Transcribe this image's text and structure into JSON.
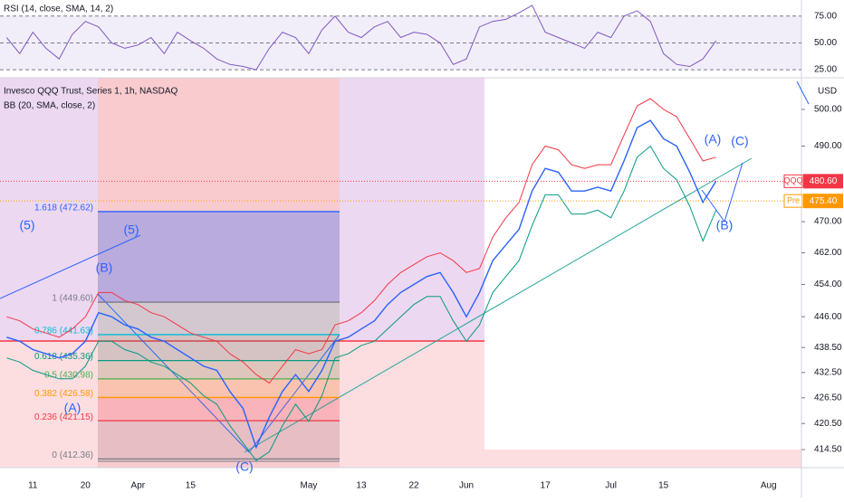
{
  "chart_data": {
    "type": "line",
    "title": "Invesco QQQ Trust, Series 1, 1h, NASDAQ",
    "subtitle": "BB (20, SMA, close, 2)",
    "currency": "USD",
    "log": true,
    "ylim": [
      410.4,
      508.8
    ],
    "yticks": [
      {
        "value": 500,
        "label": "500.00"
      },
      {
        "value": 490,
        "label": "490.00"
      },
      {
        "value": 470,
        "label": "470.00"
      },
      {
        "value": 462,
        "label": "462.00"
      },
      {
        "value": 454,
        "label": "454.00"
      },
      {
        "value": 446,
        "label": "446.00"
      },
      {
        "value": 438.5,
        "label": "438.50"
      },
      {
        "value": 432.5,
        "label": "432.50"
      },
      {
        "value": 426.5,
        "label": "426.50"
      },
      {
        "value": 420.5,
        "label": "420.50"
      },
      {
        "value": 414.5,
        "label": "414.50"
      }
    ],
    "categories": [
      null,
      null,
      "11",
      null,
      null,
      null,
      "20",
      null,
      null,
      null,
      "Apr",
      null,
      null,
      null,
      "15",
      null,
      null,
      null,
      null,
      null,
      null,
      null,
      null,
      "May",
      null,
      null,
      null,
      "13",
      null,
      null,
      null,
      "22",
      null,
      null,
      null,
      "Jun",
      null,
      null,
      null,
      null,
      null,
      "17",
      null,
      null,
      null,
      null,
      "Jul",
      null,
      null,
      null,
      "15",
      null,
      null,
      null,
      null,
      null,
      null,
      null,
      "Aug",
      null,
      null
    ],
    "series": [
      {
        "color": "#2962ff",
        "values": [
          441,
          440,
          438,
          437,
          436,
          437,
          440,
          447,
          446,
          444,
          443,
          441,
          440,
          438,
          436,
          434,
          433,
          428,
          424,
          415,
          422,
          428,
          432,
          428,
          433,
          440,
          441,
          443,
          445,
          449,
          452,
          454,
          456,
          457,
          452,
          446,
          452,
          460,
          464,
          468,
          478,
          484,
          483,
          478,
          478,
          479,
          478,
          486,
          495,
          497,
          492,
          490,
          483,
          475,
          480.6,
          null,
          null,
          null,
          null,
          null,
          null
        ]
      },
      {
        "color": "#f23645",
        "values": [
          446,
          445,
          443,
          442,
          441,
          443,
          446,
          452,
          452,
          450,
          449,
          447,
          446,
          444,
          442,
          441,
          440,
          437,
          435,
          432,
          430,
          434,
          438,
          437,
          438,
          444,
          445,
          447,
          450,
          454,
          457,
          459,
          461,
          462,
          460,
          457,
          458,
          466,
          471,
          475,
          485,
          490,
          489,
          485,
          484,
          485,
          485,
          493,
          501,
          503,
          500,
          498,
          492,
          486,
          487,
          null,
          null,
          null,
          null,
          null,
          null
        ]
      },
      {
        "color": "#089981",
        "values": [
          436,
          435,
          433,
          432,
          431,
          431,
          434,
          440,
          440,
          438,
          437,
          435,
          434,
          432,
          430,
          427,
          425,
          420,
          416,
          412,
          414,
          420,
          425,
          421,
          427,
          436,
          437,
          439,
          440,
          443,
          446,
          449,
          451,
          451,
          445,
          440,
          444,
          452,
          456,
          460,
          469,
          477,
          477,
          472,
          472,
          473,
          471,
          478,
          487,
          490,
          484,
          481,
          474,
          465,
          473,
          null,
          null,
          null,
          null,
          null,
          null
        ]
      }
    ],
    "price_labels": [
      {
        "symbol": "QQQ",
        "value": 480.6,
        "label": "480.60",
        "color": "#f23645"
      },
      {
        "symbol": "Pre",
        "value": 475.4,
        "label": "475.40",
        "color": "#ff9800"
      }
    ],
    "fib_levels": [
      {
        "label": "1.618 (472.62)",
        "price": 472.62,
        "color": "#2962ff"
      },
      {
        "label": "1 (449.60)",
        "price": 449.6,
        "color": "#787b86"
      },
      {
        "label": "0.786 (441.63)",
        "price": 441.63,
        "color": "#00bcd4"
      },
      {
        "label": "0.618 (435.36)",
        "price": 435.36,
        "color": "#089981"
      },
      {
        "label": "0.5 (430.98)",
        "price": 430.98,
        "color": "#4caf50"
      },
      {
        "label": "0.382 (426.58)",
        "price": 426.58,
        "color": "#ff9800"
      },
      {
        "label": "0.236 (421.15)",
        "price": 421.15,
        "color": "#f23645"
      },
      {
        "label": "0 (412.36)",
        "price": 412.36,
        "color": "#787b86"
      }
    ],
    "annotations": [
      "(5)",
      "(5)",
      "(B)",
      "(A)",
      "(C)",
      "(A)",
      "(C)",
      "(B)"
    ],
    "rsi": {
      "title": "RSI (14, close, SMA, 14, 2)",
      "color": "#7e57c2",
      "ylim": [
        17.5,
        90
      ],
      "yticks": [
        {
          "value": 75,
          "label": "75.00"
        },
        {
          "value": 50,
          "label": "50.00"
        },
        {
          "value": 25,
          "label": "25.00"
        }
      ],
      "values": [
        55,
        40,
        60,
        45,
        35,
        58,
        70,
        65,
        50,
        45,
        48,
        55,
        40,
        60,
        52,
        45,
        35,
        30,
        28,
        25,
        45,
        60,
        55,
        40,
        62,
        75,
        60,
        55,
        65,
        70,
        55,
        60,
        58,
        50,
        30,
        35,
        65,
        70,
        72,
        78,
        85,
        60,
        55,
        50,
        45,
        60,
        55,
        75,
        80,
        70,
        40,
        30,
        28,
        35,
        52,
        null,
        null,
        null,
        null,
        null,
        null
      ]
    }
  }
}
